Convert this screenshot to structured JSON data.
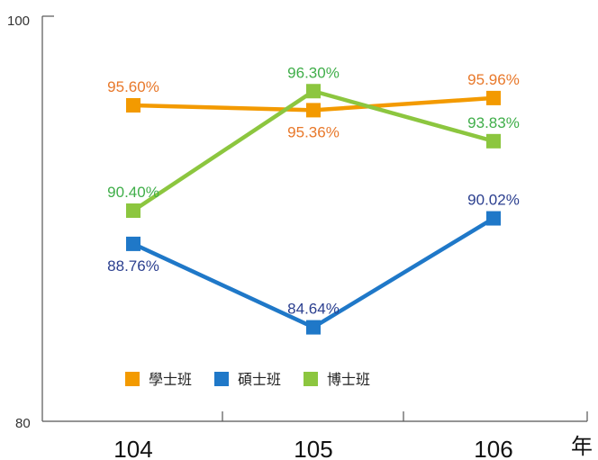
{
  "chart_data": {
    "type": "line",
    "categories": [
      "104",
      "105",
      "106"
    ],
    "x_unit": "年",
    "ylim": [
      80,
      100
    ],
    "y_ticks": [
      "80",
      "100"
    ],
    "grid": false,
    "legend_position": "bottom-left",
    "series": [
      {
        "name": "學士班",
        "values": [
          95.6,
          95.36,
          95.96
        ],
        "labels": [
          "95.60%",
          "95.36%",
          "95.96%"
        ],
        "label_positions": [
          "above",
          "below",
          "above"
        ],
        "color": "#F39A00",
        "label_color": "#E8782A"
      },
      {
        "name": "碩士班",
        "values": [
          88.76,
          84.64,
          90.02
        ],
        "labels": [
          "88.76%",
          "84.64%",
          "90.02%"
        ],
        "label_positions": [
          "below",
          "above",
          "above"
        ],
        "color": "#1F78C8",
        "label_color": "#2B3F8F"
      },
      {
        "name": "博士班",
        "values": [
          90.4,
          96.3,
          93.83
        ],
        "labels": [
          "90.40%",
          "96.30%",
          "93.83%"
        ],
        "label_positions": [
          "above",
          "above",
          "above"
        ],
        "color": "#8CC63F",
        "label_color": "#3FAE49"
      }
    ]
  }
}
